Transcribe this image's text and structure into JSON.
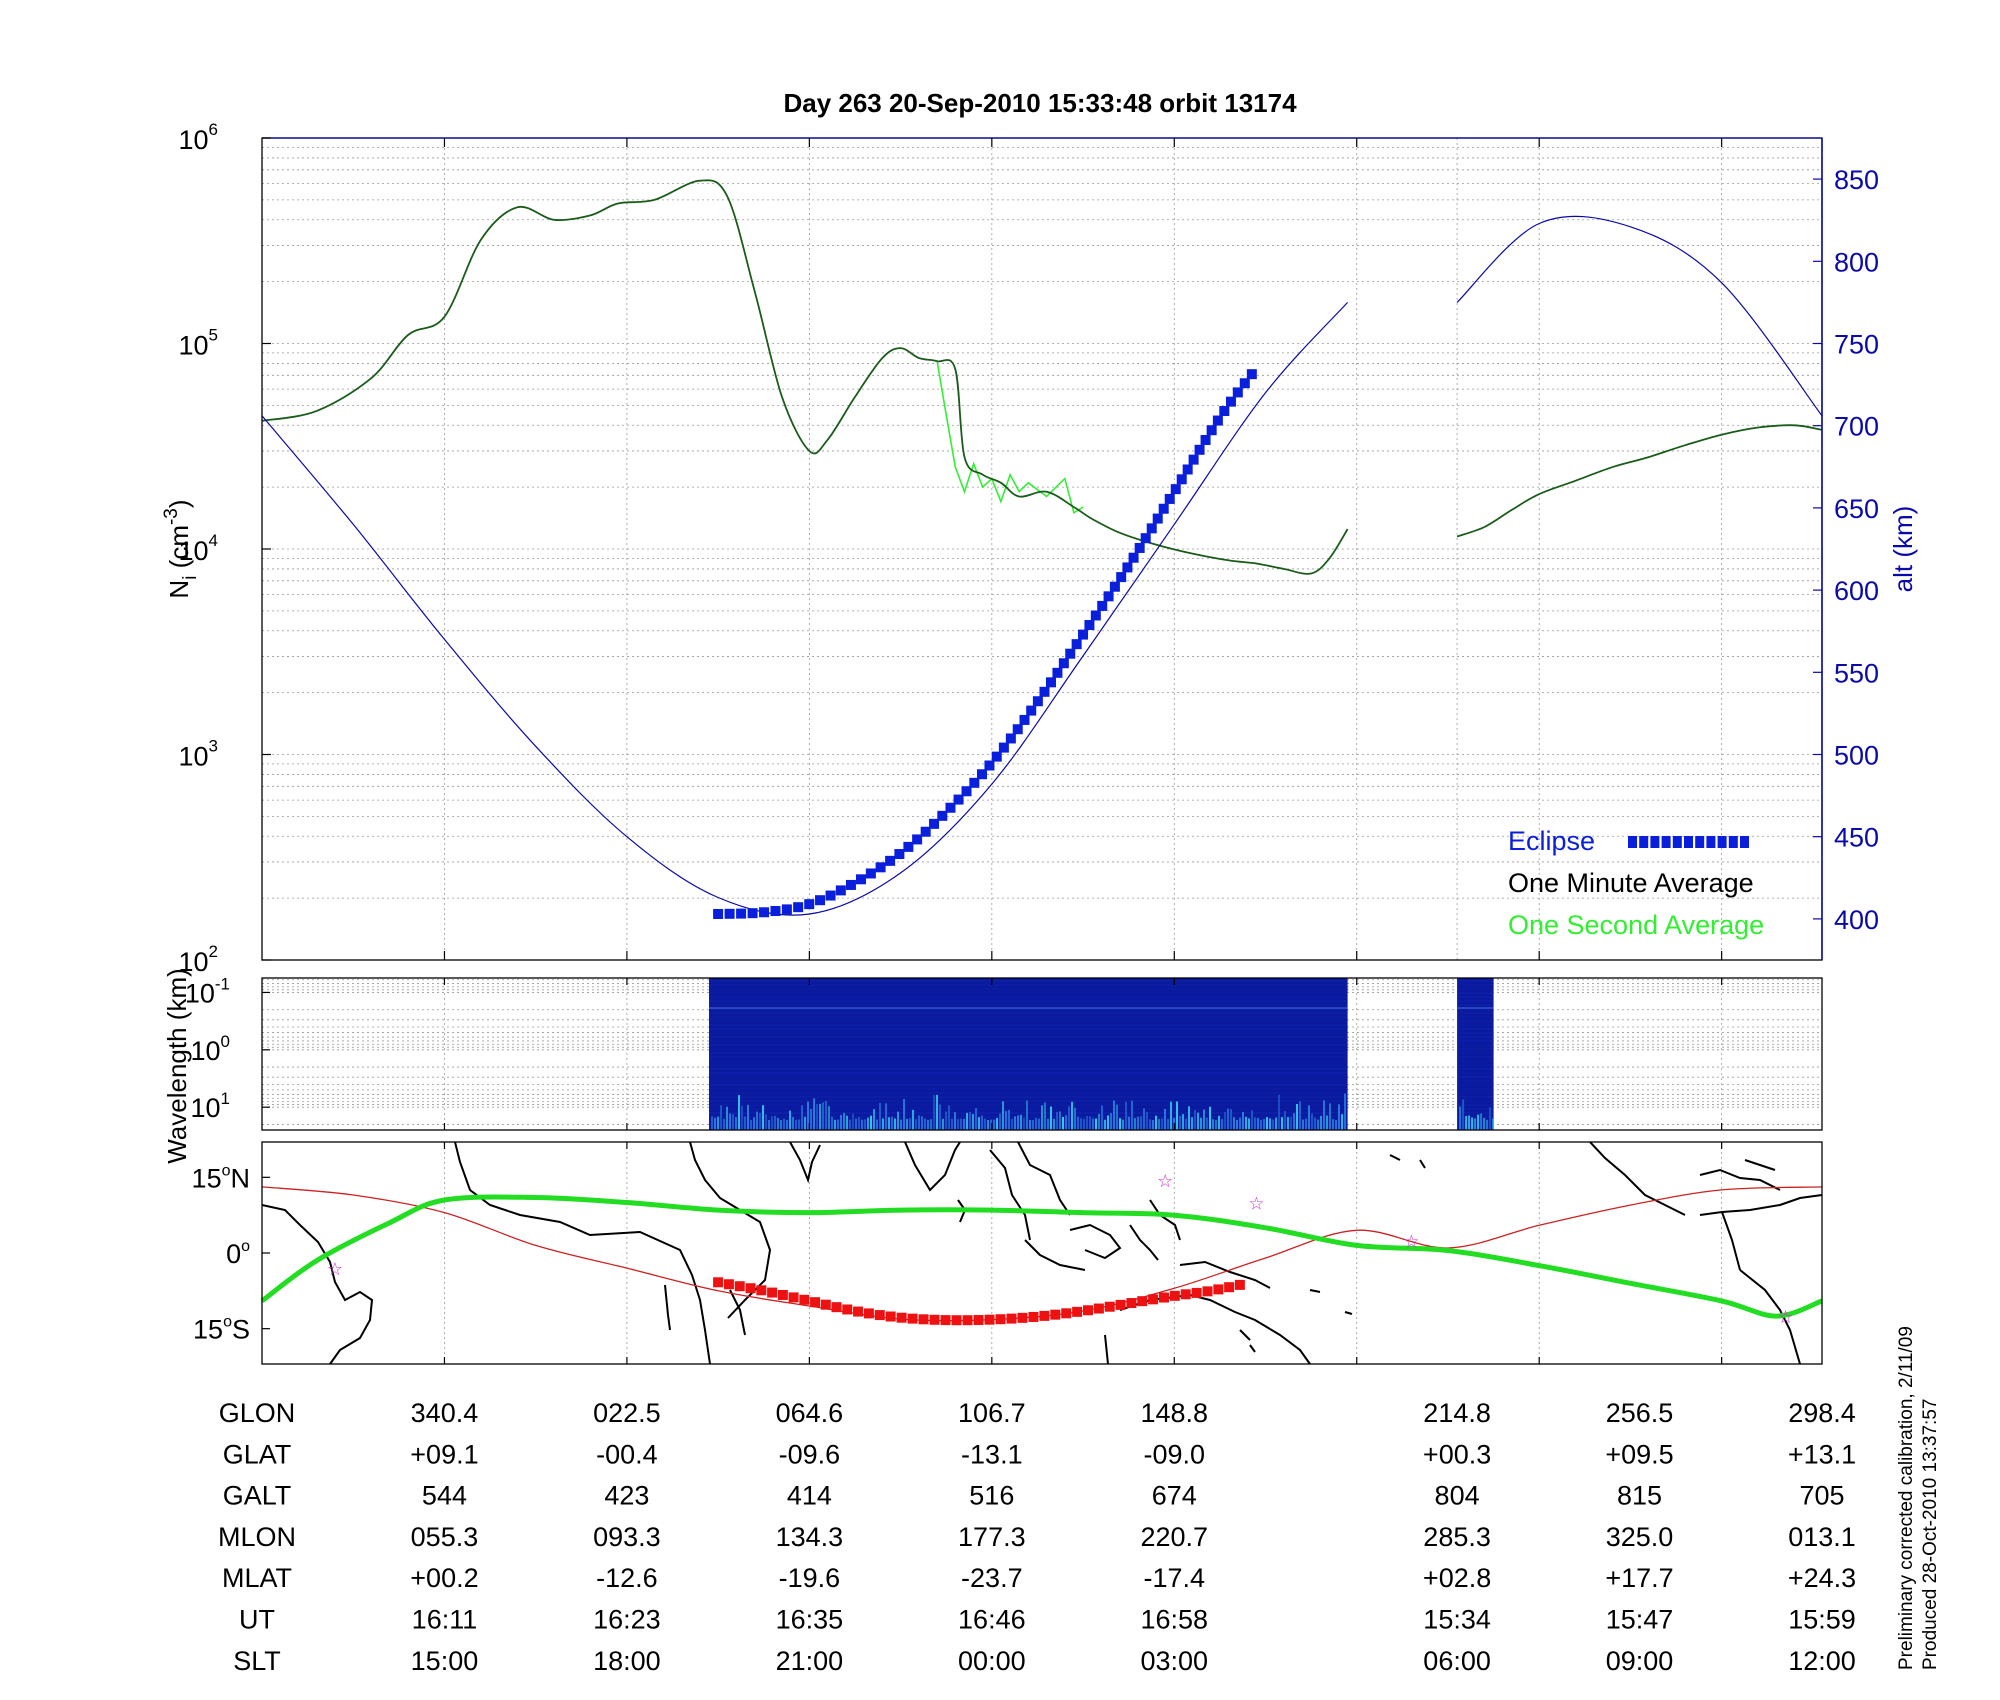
{
  "title": "Day 263  20-Sep-2010 15:33:48   orbit 13174",
  "colors": {
    "density_minute": "#1a5c1a",
    "density_second": "#33ee33",
    "altitude": "#0a0aa8",
    "eclipse": "#0a1fdc",
    "track": "#cc2222",
    "eclipse_track": "#ee1111",
    "mag_equator": "#22dd22",
    "spectrogram": "#0a1a9e"
  },
  "notes": [
    "Preliminary corrected calibration, 2/11/09",
    "Produced 28-Oct-2010 13:37:57"
  ],
  "chart_data": [
    {
      "type": "line",
      "panel": "density",
      "title": "Day 263  20-Sep-2010 15:33:48   orbit 13174",
      "ylabel_main": "N",
      "ylabel_sub": "i",
      "ylabel_unit_pre": " (cm",
      "ylabel_unit_exp": "-3",
      "ylabel_unit_post": ")",
      "y2label": "alt (km)",
      "yscale": "log",
      "ylim": [
        100,
        1000000
      ],
      "y2lim": [
        375,
        875
      ],
      "xlim": [
        0,
        8.55
      ],
      "yticks": [
        {
          "base": "10",
          "exp": "2"
        },
        {
          "base": "10",
          "exp": "3"
        },
        {
          "base": "10",
          "exp": "4"
        },
        {
          "base": "10",
          "exp": "5"
        },
        {
          "base": "10",
          "exp": "6"
        }
      ],
      "ytick_values": [
        100,
        1000,
        10000,
        100000,
        1000000
      ],
      "y2ticks": [
        "400",
        "450",
        "500",
        "550",
        "600",
        "650",
        "700",
        "750",
        "800",
        "850"
      ],
      "grid": true,
      "legend_position": "bottom-right",
      "legend": [
        {
          "label": "Eclipse"
        },
        {
          "label": "One Minute Average"
        },
        {
          "label": "One Second Average"
        }
      ],
      "x_break": [
        5.95,
        6.55
      ],
      "series": [
        {
          "name": "One Minute Average",
          "x": [
            0,
            0.3,
            0.6,
            0.8,
            1.0,
            1.2,
            1.4,
            1.6,
            1.8,
            1.95,
            2.15,
            2.4,
            2.55,
            2.7,
            2.85,
            3.0,
            3.1,
            3.25,
            3.4,
            3.5,
            3.6,
            3.7,
            3.8,
            3.85,
            3.95,
            4.05,
            4.15,
            4.3,
            4.45,
            4.55,
            4.7,
            4.9,
            5.1,
            5.3,
            5.45,
            5.6,
            5.75,
            5.85,
            5.95
          ],
          "y": [
            42000,
            47000,
            68000,
            110000,
            135000,
            320000,
            460000,
            400000,
            420000,
            480000,
            500000,
            620000,
            520000,
            180000,
            55000,
            30000,
            34000,
            55000,
            85000,
            95000,
            85000,
            82000,
            75000,
            28000,
            23000,
            21000,
            18000,
            19000,
            16000,
            14000,
            12000,
            10500,
            9500,
            8800,
            8500,
            8000,
            7600,
            9000,
            12500
          ]
        },
        {
          "name": "One Minute Average (post-gap)",
          "x": [
            6.55,
            6.7,
            6.85,
            7.0,
            7.2,
            7.4,
            7.6,
            7.8,
            8.0,
            8.2,
            8.4,
            8.55
          ],
          "y": [
            11500,
            12800,
            15500,
            18500,
            21500,
            25000,
            28000,
            32000,
            36000,
            39000,
            40000,
            38000
          ]
        },
        {
          "name": "One Second Average",
          "x": [
            3.7,
            3.75,
            3.8,
            3.85,
            3.9,
            3.95,
            4.0,
            4.05,
            4.1,
            4.15,
            4.2,
            4.3,
            4.4,
            4.45,
            4.5
          ],
          "y": [
            82000,
            45000,
            25000,
            19000,
            26000,
            20000,
            22000,
            17000,
            23000,
            19000,
            21000,
            18000,
            22000,
            15000,
            16000
          ]
        },
        {
          "name": "alt (km)",
          "axis": "right",
          "x": [
            0,
            0.5,
            1.0,
            1.5,
            2.0,
            2.5,
            3.0,
            3.5,
            4.0,
            4.5,
            5.0,
            5.5,
            5.95,
            6.55,
            7.0,
            7.5,
            8.0,
            8.55
          ],
          "y": [
            706,
            640,
            570,
            505,
            450,
            413,
            403,
            428,
            482,
            560,
            640,
            720,
            775,
            775,
            823,
            821,
            787,
            706
          ]
        },
        {
          "name": "Eclipse",
          "axis": "right",
          "x": [
            2.5,
            2.75,
            3.0,
            3.25,
            3.5,
            3.75,
            4.0,
            4.25,
            4.5,
            4.75,
            5.0,
            5.25,
            5.45
          ],
          "y": [
            403,
            404,
            409,
            422,
            440,
            465,
            495,
            532,
            573,
            615,
            660,
            705,
            735
          ]
        }
      ]
    },
    {
      "type": "heatmap",
      "panel": "spectrogram",
      "ylabel": "Wavelength (km)",
      "yscale": "log",
      "ylim": [
        0.056,
        25
      ],
      "yticks": [
        {
          "base": "10",
          "exp": "-1"
        },
        {
          "base": "10",
          "exp": "0"
        },
        {
          "base": "10",
          "exp": "1"
        }
      ],
      "ytick_values": [
        0.1,
        1,
        10
      ],
      "grid": true,
      "segments": [
        {
          "x": [
            2.45,
            5.95
          ]
        },
        {
          "x": [
            6.55,
            6.75
          ]
        }
      ]
    },
    {
      "type": "line",
      "panel": "map",
      "ylim": [
        -22,
        22
      ],
      "yticks": [
        {
          "deg": "15",
          "hemi": "N",
          "value": 15
        },
        {
          "deg": "0",
          "hemi": "",
          "value": 0
        },
        {
          "deg": "15",
          "hemi": "S",
          "value": -15
        }
      ],
      "grid": true,
      "series": [
        {
          "name": "orbit track",
          "x": [
            0,
            0.5,
            1.0,
            1.5,
            2.0,
            2.5,
            3.0,
            3.5,
            4.0,
            4.5,
            5.0,
            5.5,
            6.0,
            6.5,
            7.0,
            7.5,
            8.0,
            8.55
          ],
          "y": [
            13.1,
            11.5,
            8.0,
            1.5,
            -3.0,
            -7.5,
            -10.5,
            -13.1,
            -13.2,
            -11.5,
            -7.0,
            -1.0,
            4.5,
            1.0,
            5.5,
            9.5,
            12.5,
            13.1
          ]
        },
        {
          "name": "eclipse track",
          "x": [
            2.5,
            2.75,
            3.0,
            3.25,
            3.5,
            3.75,
            4.0,
            4.25,
            4.5,
            4.75,
            5.0,
            5.2,
            5.4
          ],
          "y": [
            -5.8,
            -7.5,
            -9.5,
            -11.5,
            -12.8,
            -13.3,
            -13.2,
            -12.6,
            -11.5,
            -10.0,
            -8.5,
            -7.5,
            -6.0
          ]
        },
        {
          "name": "magnetic equator",
          "x": [
            0,
            0.3,
            0.7,
            1.0,
            1.5,
            2.0,
            2.5,
            3.0,
            3.5,
            4.0,
            4.5,
            5.0,
            5.5,
            6.0,
            6.5,
            7.0,
            7.5,
            8.0,
            8.3,
            8.55
          ],
          "y": [
            -9.5,
            -1.5,
            6.0,
            10.5,
            11.0,
            10.0,
            8.5,
            8.0,
            8.5,
            8.5,
            8.0,
            7.5,
            5.0,
            1.5,
            0.5,
            -2.5,
            -6.0,
            -9.5,
            -12.5,
            -9.5
          ]
        }
      ],
      "markers": [
        {
          "x": 0.4,
          "y": -3.0
        },
        {
          "x": 4.95,
          "y": 14.5
        },
        {
          "x": 5.45,
          "y": 10.0
        },
        {
          "x": 6.3,
          "y": 2.5
        },
        {
          "x": 8.35,
          "y": -12.5
        }
      ]
    }
  ],
  "orbit_table": {
    "row_labels": [
      "GLON",
      "GLAT",
      "GALT",
      "MLON",
      "MLAT",
      "UT",
      "SLT"
    ],
    "columns": [
      {
        "x": 1,
        "values": [
          "340.4",
          "+09.1",
          "544",
          "055.3",
          "+00.2",
          "16:11",
          "15:00"
        ]
      },
      {
        "x": 2,
        "values": [
          "022.5",
          "-00.4",
          "423",
          "093.3",
          "-12.6",
          "16:23",
          "18:00"
        ]
      },
      {
        "x": 3,
        "values": [
          "064.6",
          "-09.6",
          "414",
          "134.3",
          "-19.6",
          "16:35",
          "21:00"
        ]
      },
      {
        "x": 4,
        "values": [
          "106.7",
          "-13.1",
          "516",
          "177.3",
          "-23.7",
          "16:46",
          "00:00"
        ]
      },
      {
        "x": 5,
        "values": [
          "148.8",
          "-09.0",
          "674",
          "220.7",
          "-17.4",
          "16:58",
          "03:00"
        ]
      },
      {
        "x": 6.55,
        "values": [
          "214.8",
          "+00.3",
          "804",
          "285.3",
          "+02.8",
          "15:34",
          "06:00"
        ]
      },
      {
        "x": 7.55,
        "values": [
          "256.5",
          "+09.5",
          "815",
          "325.0",
          "+17.7",
          "15:47",
          "09:00"
        ]
      },
      {
        "x": 8.55,
        "values": [
          "298.4",
          "+13.1",
          "705",
          "013.1",
          "+24.3",
          "15:59",
          "12:00"
        ]
      }
    ]
  }
}
